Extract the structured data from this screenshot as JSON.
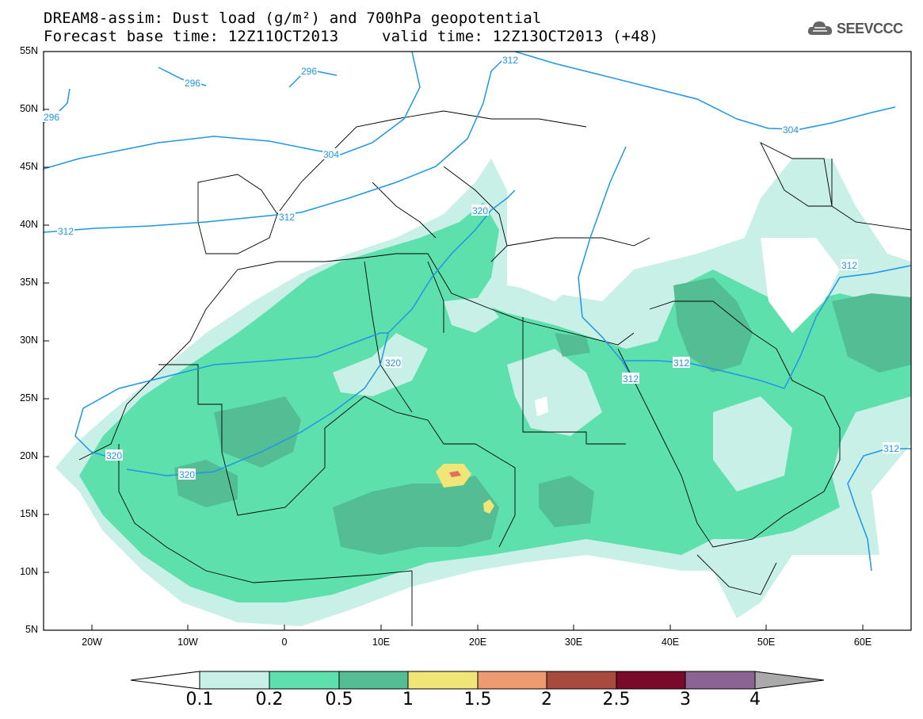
{
  "title": {
    "line1": "DREAM8-assim: Dust load (g/m²) and 700hPa geopotential",
    "line2_left": "Forecast base time: 12Z11OCT2013",
    "line2_right": "valid time: 12Z13OCT2013 (+48)"
  },
  "logo": {
    "text": "SEEVCCC",
    "icon": "cloud-icon"
  },
  "axes": {
    "lat_labels": [
      "55N",
      "50N",
      "45N",
      "40N",
      "35N",
      "30N",
      "25N",
      "20N",
      "15N",
      "10N",
      "5N"
    ],
    "lon_labels": [
      "20W",
      "10W",
      "0",
      "10E",
      "20E",
      "30E",
      "40E",
      "50E",
      "60E"
    ]
  },
  "contour_labels": [
    "296",
    "304",
    "296",
    "296",
    "304",
    "304",
    "312",
    "312",
    "312",
    "312",
    "320",
    "320",
    "320",
    "320",
    "312",
    "312",
    "312",
    "312"
  ],
  "colorbar": {
    "levels": [
      "0.1",
      "0.2",
      "0.5",
      "1",
      "1.5",
      "2",
      "2.5",
      "3",
      "4"
    ],
    "colors": [
      "#c8f0e6",
      "#5ee0ac",
      "#53be94",
      "#f0e678",
      "#ee9a70",
      "#a84a3c",
      "#7a0a2a",
      "#8c6494"
    ],
    "under_color": "#ffffff",
    "over_color": "#aaaaaa"
  },
  "colors": {
    "contour": "#1e96e6",
    "borders": "#000000"
  }
}
